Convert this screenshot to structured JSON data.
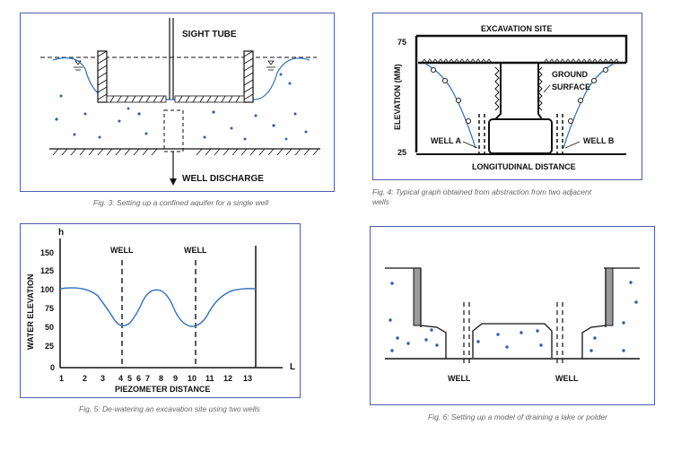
{
  "fig3": {
    "sight_tube_label": "SIGHT TUBE",
    "well_discharge_label": "WELL DISCHARGE",
    "caption": "Fig. 3: Setting up a confined aquifer for a single well",
    "colors": {
      "border": "#4a5fb0",
      "curve": "#3a78c0",
      "dot": "#2a5fb0"
    }
  },
  "fig4": {
    "title": "EXCAVATION SITE",
    "y_top": "75",
    "y_bottom": "25",
    "ylabel": "ELEVATION (MM)",
    "xlabel": "LONGITUDINAL DISTANCE",
    "ground_surface_line1": "GROUND",
    "ground_surface_line2": "SURFACE",
    "well_a": "WELL A",
    "well_b": "WELL B",
    "caption_line1": "Fig. 4: Typical graph obtained from abstraction from two adjacent",
    "caption_line2": "wells"
  },
  "fig5": {
    "h_label": "h",
    "l_label": "L",
    "ylabel": "WATER ELEVATION",
    "xlabel": "PIEZOMETER DISTANCE",
    "well_left": "WELL",
    "well_right": "WELL",
    "y_ticks": [
      "150",
      "125",
      "100",
      "75",
      "50",
      "25",
      "0"
    ],
    "x_ticks": [
      "1",
      "2",
      "3",
      "4",
      "5",
      "6",
      "7",
      "8",
      "9",
      "10",
      "11",
      "12",
      "13"
    ],
    "caption": "Fig. 5: De-watering an excavation site using two wells"
  },
  "fig6": {
    "well_left": "WELL",
    "well_right": "WELL",
    "caption": "Fig. 6: Setting up a model of draining a lake or polder"
  }
}
